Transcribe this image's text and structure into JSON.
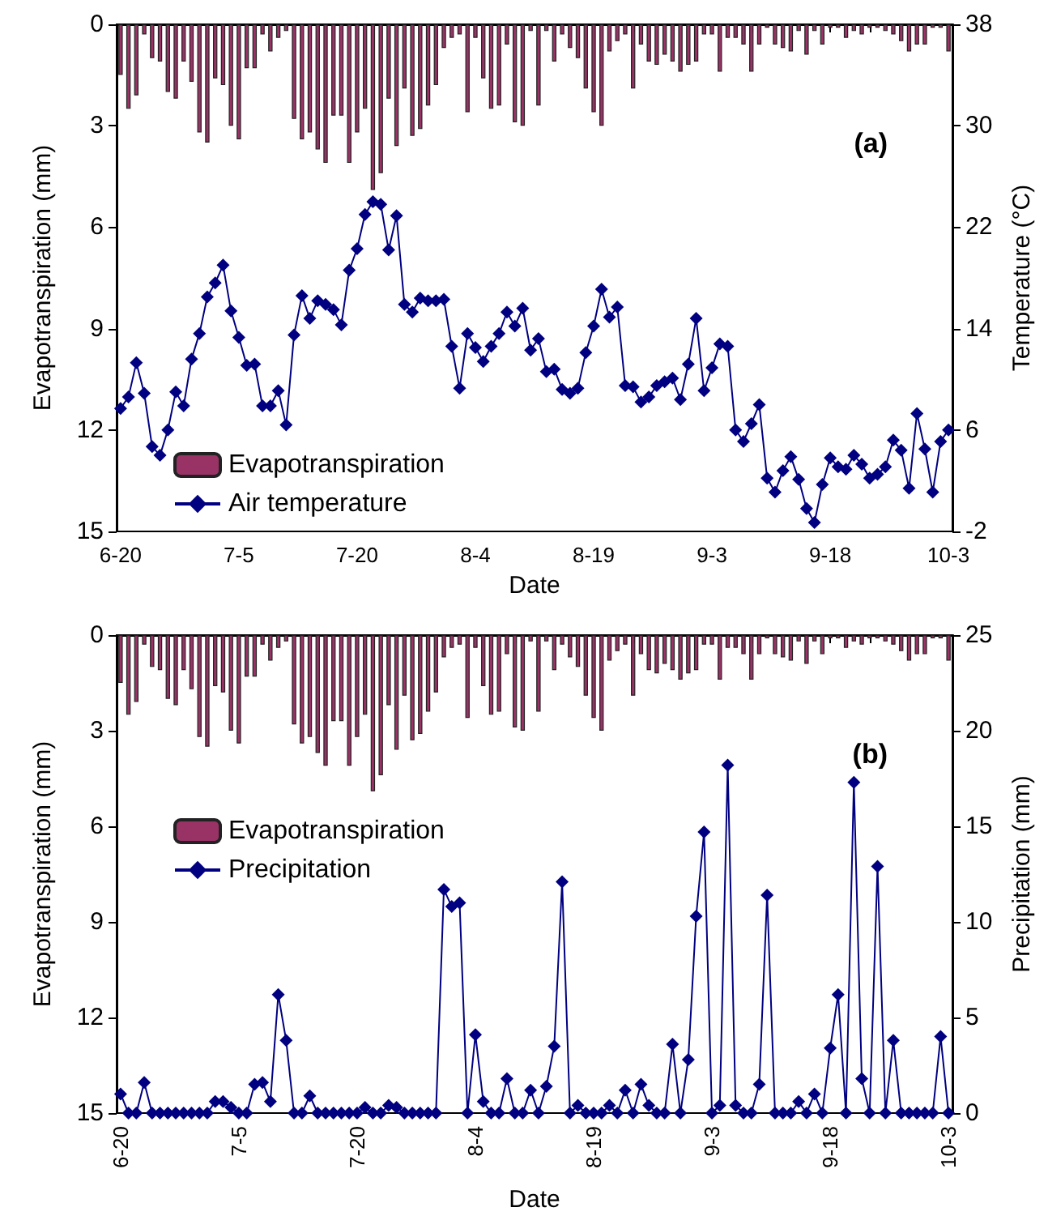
{
  "chart_data": [
    {
      "type": "bar",
      "xlabel": "Date",
      "ylabel": "Evapotranspiration (mm)",
      "y2label": "Temperature (°C)",
      "annotations": [
        "(a)"
      ],
      "categories": [
        "6-20",
        null,
        null,
        null,
        null,
        null,
        null,
        null,
        null,
        null,
        null,
        null,
        null,
        null,
        null,
        "7-5",
        null,
        null,
        null,
        null,
        null,
        null,
        null,
        null,
        null,
        null,
        null,
        null,
        null,
        null,
        "7-20",
        null,
        null,
        null,
        null,
        null,
        null,
        null,
        null,
        null,
        null,
        null,
        null,
        null,
        null,
        "8-4",
        null,
        null,
        null,
        null,
        null,
        null,
        null,
        null,
        null,
        null,
        null,
        null,
        null,
        null,
        "8-19",
        null,
        null,
        null,
        null,
        null,
        null,
        null,
        null,
        null,
        null,
        null,
        null,
        null,
        null,
        "9-3",
        null,
        null,
        null,
        null,
        null,
        null,
        null,
        null,
        null,
        null,
        null,
        null,
        null,
        null,
        "9-18",
        null,
        null,
        null,
        null,
        null,
        null,
        null,
        null,
        null,
        null,
        null,
        null,
        null,
        null,
        "10-3"
      ],
      "series": [
        {
          "name": "Evapotranspiration",
          "color": "#993366",
          "values": [
            1.5,
            2.5,
            2.1,
            0.3,
            1.0,
            1.1,
            2.0,
            2.2,
            1.1,
            1.7,
            3.2,
            3.5,
            1.6,
            1.8,
            3.0,
            3.4,
            1.3,
            1.3,
            0.3,
            0.8,
            0.4,
            0.2,
            2.8,
            3.4,
            3.2,
            3.7,
            4.1,
            2.7,
            2.7,
            4.1,
            3.2,
            2.5,
            4.9,
            4.4,
            2.2,
            3.6,
            1.9,
            3.3,
            3.1,
            2.4,
            1.8,
            0.7,
            0.4,
            0.3,
            2.6,
            0.4,
            1.6,
            2.5,
            2.4,
            0.6,
            2.9,
            3.0,
            0.2,
            2.4,
            0.2,
            1.1,
            0.3,
            0.7,
            1.0,
            1.9,
            2.6,
            3.0,
            0.8,
            0.5,
            0.3,
            1.9,
            0.6,
            1.1,
            1.2,
            0.9,
            1.1,
            1.4,
            1.2,
            1.1,
            0.3,
            0.3,
            1.4,
            0.4,
            0.4,
            0.6,
            1.4,
            0.6,
            0.1,
            0.6,
            0.7,
            0.8,
            0.2,
            0.9,
            0.2,
            0.6,
            0.1,
            0.1,
            0.4,
            0.2,
            0.3,
            0.1,
            0.1,
            0.2,
            0.3,
            0.5,
            0.8,
            0.6,
            0.6,
            0.1,
            0.1,
            0.8
          ]
        },
        {
          "name": "Air temperature",
          "type": "line",
          "axis": "y2",
          "color": "#000080",
          "values": [
            7.7,
            8.6,
            11.3,
            8.9,
            4.7,
            4.0,
            6.0,
            9.0,
            7.9,
            11.6,
            13.6,
            16.5,
            17.6,
            19.0,
            15.4,
            13.3,
            11.1,
            11.2,
            7.9,
            7.9,
            9.1,
            6.4,
            13.5,
            16.6,
            14.8,
            16.2,
            15.9,
            15.5,
            14.3,
            18.6,
            20.3,
            23.0,
            24.0,
            23.8,
            20.2,
            22.9,
            15.9,
            15.3,
            16.4,
            16.2,
            16.2,
            16.3,
            12.6,
            9.3,
            13.6,
            12.5,
            11.4,
            12.6,
            13.6,
            15.3,
            14.2,
            15.6,
            12.3,
            13.2,
            10.6,
            10.8,
            9.2,
            8.9,
            9.3,
            12.1,
            14.2,
            17.1,
            14.9,
            15.7,
            9.5,
            9.4,
            8.2,
            8.6,
            9.5,
            9.8,
            10.1,
            8.4,
            11.2,
            14.8,
            9.1,
            10.9,
            12.8,
            12.6,
            6.0,
            5.1,
            6.5,
            8.0,
            2.2,
            1.1,
            2.8,
            3.9,
            2.1,
            -0.2,
            -1.3,
            1.7,
            3.8,
            3.1,
            2.9,
            4.0,
            3.3,
            2.2,
            2.5,
            3.1,
            5.2,
            4.4,
            1.4,
            7.3,
            4.5,
            1.1,
            5.1,
            6.0
          ]
        }
      ],
      "ylim": [
        15,
        0
      ],
      "yticks": [
        0,
        3,
        6,
        9,
        12,
        15
      ],
      "y2lim": [
        -2,
        38
      ],
      "y2ticks": [
        -2,
        6,
        14,
        22,
        30,
        38
      ],
      "marker": "diamond",
      "legend": "bottom left",
      "grid": false
    },
    {
      "type": "bar",
      "xlabel": "Date",
      "ylabel": "Evapotranspiration (mm)",
      "y2label": "Precipitation (mm)",
      "annotations": [
        "(b)"
      ],
      "categories": [
        "6-20",
        null,
        null,
        null,
        null,
        null,
        null,
        null,
        null,
        null,
        null,
        null,
        null,
        null,
        null,
        "7-5",
        null,
        null,
        null,
        null,
        null,
        null,
        null,
        null,
        null,
        null,
        null,
        null,
        null,
        null,
        "7-20",
        null,
        null,
        null,
        null,
        null,
        null,
        null,
        null,
        null,
        null,
        null,
        null,
        null,
        null,
        "8-4",
        null,
        null,
        null,
        null,
        null,
        null,
        null,
        null,
        null,
        null,
        null,
        null,
        null,
        null,
        "8-19",
        null,
        null,
        null,
        null,
        null,
        null,
        null,
        null,
        null,
        null,
        null,
        null,
        null,
        null,
        "9-3",
        null,
        null,
        null,
        null,
        null,
        null,
        null,
        null,
        null,
        null,
        null,
        null,
        null,
        null,
        "9-18",
        null,
        null,
        null,
        null,
        null,
        null,
        null,
        null,
        null,
        null,
        null,
        null,
        null,
        null,
        "10-3"
      ],
      "series": [
        {
          "name": "Evapotranspiration",
          "color": "#993366",
          "values": [
            1.5,
            2.5,
            2.1,
            0.3,
            1.0,
            1.1,
            2.0,
            2.2,
            1.1,
            1.7,
            3.2,
            3.5,
            1.6,
            1.8,
            3.0,
            3.4,
            1.3,
            1.3,
            0.3,
            0.8,
            0.4,
            0.2,
            2.8,
            3.4,
            3.2,
            3.7,
            4.1,
            2.7,
            2.7,
            4.1,
            3.2,
            2.5,
            4.9,
            4.4,
            2.2,
            3.6,
            1.9,
            3.3,
            3.1,
            2.4,
            1.8,
            0.7,
            0.4,
            0.3,
            2.6,
            0.4,
            1.6,
            2.5,
            2.4,
            0.6,
            2.9,
            3.0,
            0.2,
            2.4,
            0.2,
            1.1,
            0.3,
            0.7,
            1.0,
            1.9,
            2.6,
            3.0,
            0.8,
            0.5,
            0.3,
            1.9,
            0.6,
            1.1,
            1.2,
            0.9,
            1.1,
            1.4,
            1.2,
            1.1,
            0.3,
            0.3,
            1.4,
            0.4,
            0.4,
            0.6,
            1.4,
            0.6,
            0.1,
            0.6,
            0.7,
            0.8,
            0.2,
            0.9,
            0.2,
            0.6,
            0.1,
            0.1,
            0.4,
            0.2,
            0.3,
            0.1,
            0.1,
            0.2,
            0.3,
            0.5,
            0.8,
            0.6,
            0.6,
            0.1,
            0.1,
            0.8
          ]
        },
        {
          "name": "Precipitation",
          "type": "line",
          "axis": "y2",
          "color": "#000080",
          "values": [
            1.0,
            0,
            0,
            1.6,
            0,
            0,
            0,
            0,
            0,
            0,
            0,
            0,
            0.6,
            0.6,
            0.3,
            0,
            0,
            1.5,
            1.6,
            0.6,
            6.2,
            3.8,
            0,
            0,
            0.9,
            0,
            0,
            0,
            0,
            0,
            0,
            0.3,
            0,
            0,
            0.4,
            0.3,
            0,
            0,
            0,
            0,
            0,
            11.7,
            10.8,
            11.0,
            0,
            4.1,
            0.6,
            0,
            0,
            1.8,
            0,
            0,
            1.2,
            0,
            1.4,
            3.5,
            12.1,
            0,
            0.4,
            0,
            0,
            0,
            0.4,
            0,
            1.2,
            0,
            1.5,
            0.4,
            0,
            0,
            3.6,
            0,
            2.8,
            10.3,
            14.7,
            0,
            0.4,
            18.2,
            0.4,
            0,
            0,
            1.5,
            11.4,
            0,
            0,
            0,
            0.6,
            0,
            1.0,
            0,
            3.4,
            6.2,
            0,
            17.3,
            1.8,
            0,
            12.9,
            0,
            3.8,
            0,
            0,
            0,
            0,
            0,
            4.0,
            0
          ]
        }
      ],
      "ylim": [
        15,
        0
      ],
      "yticks": [
        0,
        3,
        6,
        9,
        12,
        15
      ],
      "y2lim": [
        0,
        25
      ],
      "y2ticks": [
        0,
        5,
        10,
        15,
        20,
        25
      ],
      "marker": "diamond",
      "legend": "top left",
      "grid": false
    }
  ]
}
